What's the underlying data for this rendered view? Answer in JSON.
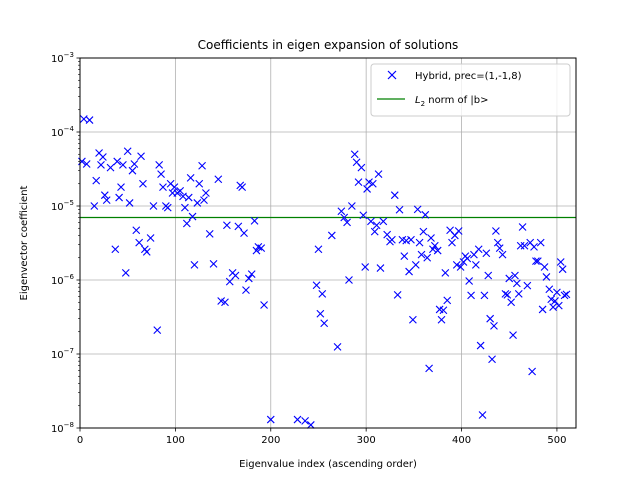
{
  "chart_data": {
    "type": "scatter",
    "title": "Coefficients in eigen expansion of solutions",
    "xlabel": "Eigenvalue index (ascending order)",
    "ylabel": "Eigenvector coefficient",
    "xlim": [
      0,
      520
    ],
    "ylim": [
      1e-08,
      0.001
    ],
    "y_scale": "log",
    "grid": true,
    "legend_position": "top-right",
    "x_ticks": [
      "0",
      "100",
      "200",
      "300",
      "400",
      "500"
    ],
    "y_ticks": [
      {
        "base": "10",
        "exp": "−3"
      },
      {
        "base": "10",
        "exp": "−4"
      },
      {
        "base": "10",
        "exp": "−5"
      },
      {
        "base": "10",
        "exp": "−6"
      },
      {
        "base": "10",
        "exp": "−7"
      },
      {
        "base": "10",
        "exp": "−8"
      }
    ],
    "series": [
      {
        "name": "Hybrid, prec=(1,-1,8)",
        "marker": "x",
        "color": "#0000ff",
        "points": [
          [
            2,
            4e-05
          ],
          [
            4,
            0.00015
          ],
          [
            7,
            3.7e-05
          ],
          [
            10,
            0.000145
          ],
          [
            15,
            1e-05
          ],
          [
            17,
            2.2e-05
          ],
          [
            20,
            5.2e-05
          ],
          [
            22,
            3.6e-05
          ],
          [
            24,
            4.6e-05
          ],
          [
            26,
            1.4e-05
          ],
          [
            28,
            1.2e-05
          ],
          [
            32,
            3.3e-05
          ],
          [
            37,
            2.6e-06
          ],
          [
            39,
            4e-05
          ],
          [
            41,
            1.3e-05
          ],
          [
            43,
            1.8e-05
          ],
          [
            45,
            3.6e-05
          ],
          [
            48,
            1.25e-06
          ],
          [
            50,
            5.5e-05
          ],
          [
            52,
            1.1e-05
          ],
          [
            55,
            3e-05
          ],
          [
            57,
            3.7e-05
          ],
          [
            59,
            4.7e-06
          ],
          [
            62,
            3.2e-06
          ],
          [
            64,
            4.7e-05
          ],
          [
            66,
            2e-05
          ],
          [
            68,
            2.6e-06
          ],
          [
            70,
            2.4e-06
          ],
          [
            74,
            3.7e-06
          ],
          [
            77,
            1e-05
          ],
          [
            81,
            2.1e-07
          ],
          [
            83,
            3.6e-05
          ],
          [
            85,
            2.7e-05
          ],
          [
            87,
            1.8e-05
          ],
          [
            90,
            1e-05
          ],
          [
            92,
            9.5e-06
          ],
          [
            95,
            2e-05
          ],
          [
            97,
            1.5e-05
          ],
          [
            99,
            1.8e-05
          ],
          [
            102,
            1.5e-05
          ],
          [
            105,
            1.6e-05
          ],
          [
            108,
            1.35e-05
          ],
          [
            110,
            9.5e-06
          ],
          [
            112,
            5.8e-06
          ],
          [
            114,
            1.3e-05
          ],
          [
            116,
            2.4e-05
          ],
          [
            118,
            7.2e-06
          ],
          [
            120,
            1.6e-06
          ],
          [
            123,
            1.1e-05
          ],
          [
            125,
            2e-05
          ],
          [
            128,
            3.5e-05
          ],
          [
            130,
            1.2e-05
          ],
          [
            132,
            1.5e-05
          ],
          [
            136,
            4.2e-06
          ],
          [
            140,
            1.65e-06
          ],
          [
            145,
            2.3e-05
          ],
          [
            148,
            5.2e-07
          ],
          [
            152,
            5e-07
          ],
          [
            154,
            5.5e-06
          ],
          [
            157,
            9.5e-07
          ],
          [
            160,
            1.25e-06
          ],
          [
            163,
            1.15e-06
          ],
          [
            166,
            5.3e-06
          ],
          [
            168,
            1.9e-05
          ],
          [
            170,
            1.8e-05
          ],
          [
            172,
            4.3e-06
          ],
          [
            174,
            7.3e-07
          ],
          [
            177,
            1.05e-06
          ],
          [
            180,
            1.2e-06
          ],
          [
            183,
            6.3e-06
          ],
          [
            185,
            2.5e-06
          ],
          [
            187,
            2.8e-06
          ],
          [
            190,
            2.7e-06
          ],
          [
            193,
            4.6e-07
          ],
          [
            200,
            1.3e-08
          ],
          [
            228,
            1.3e-08
          ],
          [
            236,
            1.25e-08
          ],
          [
            242,
            1.1e-08
          ],
          [
            248,
            8.5e-07
          ],
          [
            250,
            2.6e-06
          ],
          [
            252,
            3.5e-07
          ],
          [
            254,
            6.5e-07
          ],
          [
            256,
            2.6e-07
          ],
          [
            264,
            4e-06
          ],
          [
            270,
            1.25e-07
          ],
          [
            274,
            8.5e-06
          ],
          [
            277,
            7e-06
          ],
          [
            280,
            6e-06
          ],
          [
            282,
            1e-06
          ],
          [
            285,
            1e-05
          ],
          [
            288,
            5e-05
          ],
          [
            290,
            3.9e-05
          ],
          [
            292,
            2.1e-05
          ],
          [
            295,
            3.3e-05
          ],
          [
            297,
            7.5e-06
          ],
          [
            299,
            1.5e-06
          ],
          [
            301,
            1.7e-05
          ],
          [
            303,
            2.1e-05
          ],
          [
            305,
            6.2e-06
          ],
          [
            307,
            2e-05
          ],
          [
            309,
            4.5e-06
          ],
          [
            311,
            5.5e-06
          ],
          [
            313,
            2.7e-05
          ],
          [
            315,
            1.45e-06
          ],
          [
            318,
            6.2e-06
          ],
          [
            322,
            4.1e-06
          ],
          [
            325,
            3.3e-06
          ],
          [
            327,
            3.5e-06
          ],
          [
            330,
            1.4e-05
          ],
          [
            333,
            6.3e-07
          ],
          [
            335,
            8.9e-06
          ],
          [
            338,
            3.5e-06
          ],
          [
            340,
            2.1e-06
          ],
          [
            342,
            3.4e-06
          ],
          [
            345,
            1.3e-06
          ],
          [
            347,
            3.5e-06
          ],
          [
            349,
            2.9e-07
          ],
          [
            352,
            1.6e-06
          ],
          [
            354,
            9e-06
          ],
          [
            356,
            3.2e-06
          ],
          [
            358,
            2.2e-06
          ],
          [
            360,
            4.5e-06
          ],
          [
            362,
            7.6e-06
          ],
          [
            364,
            2e-06
          ],
          [
            366,
            6.4e-08
          ],
          [
            368,
            3.7e-06
          ],
          [
            370,
            2.6e-06
          ],
          [
            372,
            2.9e-06
          ],
          [
            375,
            2.5e-06
          ],
          [
            377,
            4e-07
          ],
          [
            379,
            2.9e-07
          ],
          [
            381,
            3.9e-07
          ],
          [
            383,
            1.25e-06
          ],
          [
            385,
            5.3e-07
          ],
          [
            388,
            4.7e-06
          ],
          [
            390,
            3.2e-06
          ],
          [
            393,
            4e-06
          ],
          [
            395,
            1.6e-06
          ],
          [
            397,
            4.6e-06
          ],
          [
            399,
            1.5e-06
          ],
          [
            402,
            1.75e-06
          ],
          [
            404,
            2.1e-06
          ],
          [
            406,
            1.95e-06
          ],
          [
            408,
            9.7e-07
          ],
          [
            410,
            6.2e-07
          ],
          [
            413,
            2.2e-06
          ],
          [
            415,
            1.6e-06
          ],
          [
            418,
            2.6e-06
          ],
          [
            420,
            1.3e-07
          ],
          [
            422,
            1.5e-08
          ],
          [
            424,
            6.2e-07
          ],
          [
            426,
            2.3e-06
          ],
          [
            428,
            1.15e-06
          ],
          [
            430,
            3e-07
          ],
          [
            432,
            8.5e-08
          ],
          [
            434,
            2.4e-07
          ],
          [
            436,
            4.6e-06
          ],
          [
            438,
            3.2e-06
          ],
          [
            440,
            2.7e-06
          ],
          [
            443,
            2.2e-06
          ],
          [
            446,
            6.5e-07
          ],
          [
            448,
            6.3e-07
          ],
          [
            450,
            1.05e-06
          ],
          [
            452,
            5e-07
          ],
          [
            454,
            1.8e-07
          ],
          [
            456,
            1.15e-06
          ],
          [
            458,
            9e-07
          ],
          [
            460,
            6.5e-07
          ],
          [
            462,
            2.9e-06
          ],
          [
            464,
            5.2e-06
          ],
          [
            466,
            2.9e-06
          ],
          [
            469,
            8.4e-07
          ],
          [
            472,
            3.2e-06
          ],
          [
            474,
            5.8e-08
          ],
          [
            476,
            2.8e-06
          ],
          [
            478,
            1.8e-06
          ],
          [
            480,
            1.8e-06
          ],
          [
            483,
            3.2e-06
          ],
          [
            485,
            4e-07
          ],
          [
            487,
            1.5e-06
          ],
          [
            489,
            1.1e-06
          ],
          [
            492,
            7.5e-07
          ],
          [
            494,
            5.5e-07
          ],
          [
            496,
            4.3e-07
          ],
          [
            498,
            5.2e-07
          ],
          [
            500,
            6.8e-07
          ],
          [
            502,
            4.5e-07
          ],
          [
            504,
            1.75e-06
          ],
          [
            506,
            1.4e-06
          ],
          [
            508,
            6.2e-07
          ],
          [
            510,
            6.4e-07
          ]
        ]
      },
      {
        "name_prefix": "L",
        "name_subscript": "2",
        "name_suffix": " norm of |b>",
        "type": "hline",
        "color": "#008000",
        "y": 7e-06
      }
    ]
  }
}
